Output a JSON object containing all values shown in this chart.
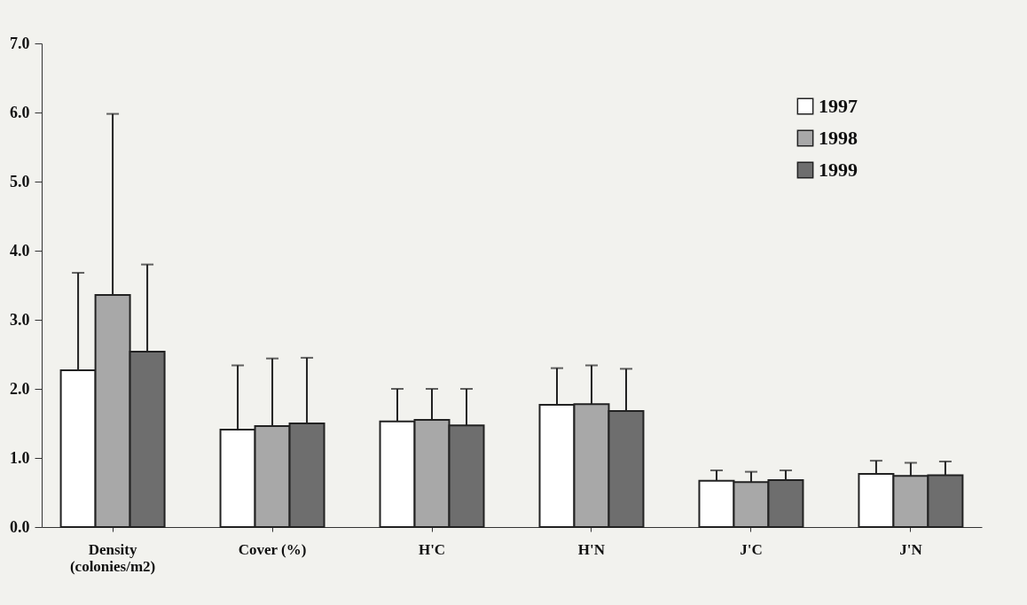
{
  "chart_data": {
    "type": "bar",
    "categories": [
      "Density (colonies/m2)",
      "Cover (%)",
      "H'C",
      "H'N",
      "J'C",
      "J'N"
    ],
    "series": [
      {
        "name": "1997",
        "color": "#ffffff",
        "values": [
          2.27,
          1.41,
          1.53,
          1.77,
          0.67,
          0.77
        ],
        "errors": [
          [
            2.27,
            3.68
          ],
          [
            1.41,
            2.34
          ],
          [
            1.53,
            2.0
          ],
          [
            1.77,
            2.3
          ],
          [
            0.67,
            0.82
          ],
          [
            0.77,
            0.96
          ]
        ]
      },
      {
        "name": "1998",
        "color": "#a8a8a8",
        "values": [
          3.36,
          1.46,
          1.55,
          1.78,
          0.65,
          0.74
        ],
        "errors": [
          [
            3.36,
            5.98
          ],
          [
            1.46,
            2.44
          ],
          [
            1.55,
            2.0
          ],
          [
            1.78,
            2.34
          ],
          [
            0.65,
            0.8
          ],
          [
            0.74,
            0.93
          ]
        ]
      },
      {
        "name": "1999",
        "color": "#6e6e6e",
        "values": [
          2.54,
          1.5,
          1.47,
          1.68,
          0.68,
          0.75
        ],
        "errors": [
          [
            2.54,
            3.8
          ],
          [
            1.5,
            2.45
          ],
          [
            1.47,
            2.0
          ],
          [
            1.68,
            2.29
          ],
          [
            0.68,
            0.82
          ],
          [
            0.75,
            0.95
          ]
        ]
      }
    ],
    "ylim": [
      0,
      7
    ],
    "yticks": [
      {
        "value": 0,
        "label": "0.0"
      },
      {
        "value": 1,
        "label": "1.0"
      },
      {
        "value": 2,
        "label": "2.0"
      },
      {
        "value": 3,
        "label": "3.0"
      },
      {
        "value": 4,
        "label": "4.0"
      },
      {
        "value": 5,
        "label": "5.0"
      },
      {
        "value": 6,
        "label": "6.0"
      },
      {
        "value": 7,
        "label": "7.0"
      }
    ],
    "legend": "top right",
    "grid": false
  }
}
